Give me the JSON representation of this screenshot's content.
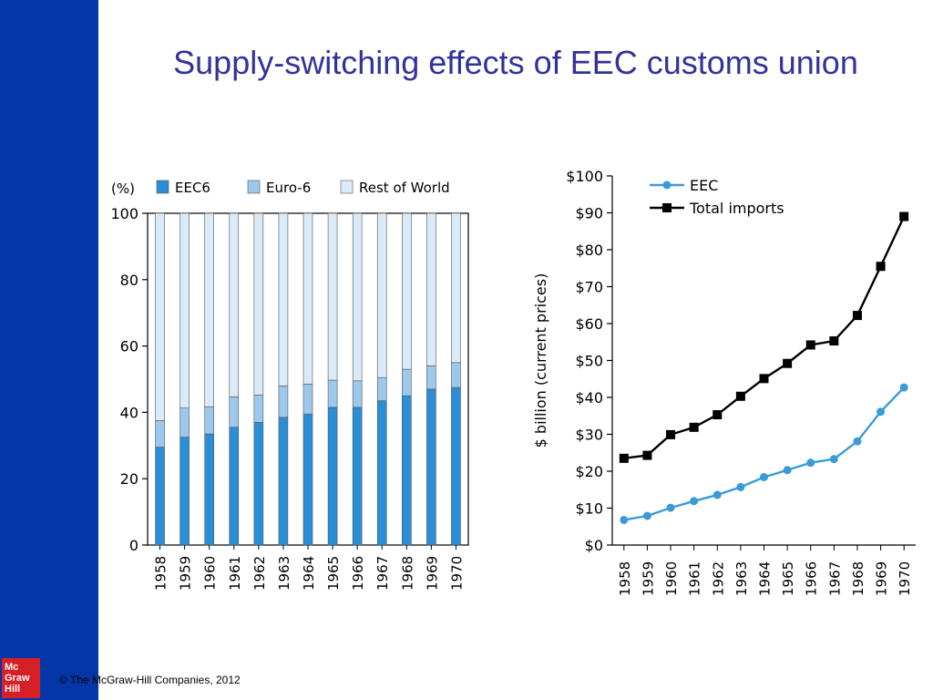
{
  "slide": {
    "title": "Supply-switching effects of EEC customs union",
    "copyright": "© The McGraw-Hill Companies, 2012",
    "logo_lines": [
      "Mc",
      "Graw",
      "Hill"
    ]
  },
  "colors": {
    "sidebar": "#0536a8",
    "title": "#32329a",
    "logo": "#d62027",
    "eec6": "#2a8fd6",
    "euro6": "#9cc8ec",
    "rest_of_world": "#dbeaf8",
    "eec_line": "#3a9bd8",
    "total_line": "#000000"
  },
  "chart_data": [
    {
      "type": "bar",
      "stacked": true,
      "ylabel": "(%)",
      "ylim": [
        0,
        100
      ],
      "yticks": [
        0,
        20,
        40,
        60,
        80,
        100
      ],
      "categories": [
        "1958",
        "1959",
        "1960",
        "1961",
        "1962",
        "1963",
        "1964",
        "1965",
        "1966",
        "1967",
        "1968",
        "1969",
        "1970"
      ],
      "legend_position": "top",
      "series": [
        {
          "name": "EEC6",
          "values": [
            29.5,
            32.5,
            33.5,
            35.5,
            37,
            38.5,
            39.5,
            41.5,
            41.5,
            43.5,
            45,
            47,
            47.5
          ]
        },
        {
          "name": "Euro-6",
          "values": [
            8,
            8.8,
            8.2,
            9.2,
            8.2,
            9.5,
            9,
            8.2,
            8,
            7,
            8,
            7,
            7.5
          ]
        },
        {
          "name": "Rest of World",
          "values": [
            62.5,
            58.7,
            58.3,
            55.3,
            54.8,
            52,
            51.5,
            50.3,
            50.5,
            49.5,
            47,
            46,
            45
          ]
        }
      ]
    },
    {
      "type": "line",
      "ylabel": "$ billion (current prices)",
      "ylim": [
        0,
        100
      ],
      "yticks": [
        "$0",
        "$10",
        "$20",
        "$30",
        "$40",
        "$50",
        "$60",
        "$70",
        "$80",
        "$90",
        "$100"
      ],
      "x": [
        "1958",
        "1959",
        "1960",
        "1961",
        "1962",
        "1963",
        "1964",
        "1965",
        "1966",
        "1967",
        "1968",
        "1969",
        "1970"
      ],
      "legend_position": "top",
      "series": [
        {
          "name": "EEC",
          "values": [
            6.8,
            7.9,
            10.1,
            11.9,
            13.6,
            15.7,
            18.4,
            20.3,
            22.3,
            23.3,
            28.1,
            36.1,
            42.7
          ]
        },
        {
          "name": "Total imports",
          "values": [
            23.5,
            24.3,
            29.9,
            31.9,
            35.3,
            40.3,
            45.1,
            49.2,
            54.2,
            55.3,
            62.2,
            75.5,
            89
          ]
        }
      ]
    }
  ]
}
